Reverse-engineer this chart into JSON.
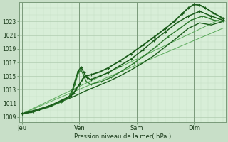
{
  "bg_color": "#c8dfc8",
  "plot_bg_color": "#d8eed8",
  "plot_bg_color2": "#e8f0e8",
  "grid_color_major": "#b0ccb0",
  "grid_color_minor": "#c0dcc0",
  "line_dark": "#1a5c1a",
  "line_mid": "#2d7a2d",
  "line_light": "#5aaa5a",
  "xlabel": "Pression niveau de la mer( hPa )",
  "yticks": [
    1009,
    1011,
    1013,
    1015,
    1017,
    1019,
    1021,
    1023
  ],
  "xtick_labels": [
    "Jeu",
    "Ven",
    "Sam",
    "Dim"
  ],
  "xtick_positions": [
    0,
    1,
    2,
    3
  ],
  "ylim": [
    1008.3,
    1025.8
  ],
  "xlim": [
    -0.05,
    3.55
  ],
  "vline_positions": [
    0,
    1,
    2,
    3
  ]
}
